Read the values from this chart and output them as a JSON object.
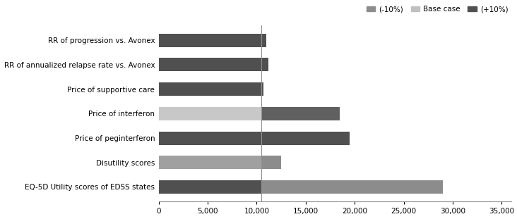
{
  "categories_display_order": [
    "EQ-5D Utility scores of EDSS states",
    "Disutility scores",
    "Price of peginterferon",
    "Price of interferon",
    "Price of supportive care",
    "RR of annualized relapse rate vs. Avonex",
    "RR of progression vs. Avonex"
  ],
  "minus10_values": [
    29000,
    12500,
    10500,
    18500,
    10400,
    10800,
    10700
  ],
  "plus10_values": [
    10500,
    10500,
    19500,
    10500,
    10700,
    11200,
    11000
  ],
  "minus10_color": "#8c8c8c",
  "plus10_color_per_row": [
    "#505050",
    "#a0a0a0",
    "#505050",
    "#c8c8c8",
    "#505050",
    "#505050",
    "#505050"
  ],
  "minus10_color_per_row": [
    "#8c8c8c",
    "#8c8c8c",
    "#a0a0a0",
    "#606060",
    "#8c8c8c",
    "#8c8c8c",
    "#8c8c8c"
  ],
  "bar_height": 0.55,
  "base_line": 10500,
  "xlim": [
    0,
    36000
  ],
  "xticks": [
    0,
    5000,
    10000,
    15000,
    20000,
    25000,
    30000,
    35000
  ],
  "xtick_labels": [
    "0",
    "5,000",
    "10,000",
    "15,000",
    "20,000",
    "25,000",
    "30,000",
    "35,000"
  ],
  "legend_items": [
    {
      "label": "(-10%)",
      "color": "#8c8c8c"
    },
    {
      "label": "Base case",
      "color": "#c0c0c0"
    },
    {
      "label": "(+10%)",
      "color": "#505050"
    }
  ],
  "refline_color": "#909090",
  "figsize": [
    7.32,
    3.11
  ],
  "dpi": 100,
  "fontsize": 7.5
}
